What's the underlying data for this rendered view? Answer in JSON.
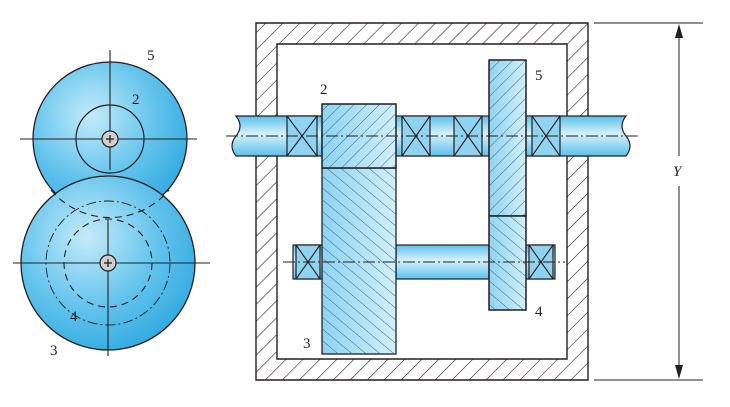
{
  "colors": {
    "gear_blue": "#3fb3e6",
    "gear_blue_light": "#bfe8f8",
    "shaft_blue": "#9fdaf2",
    "housing_gray": "#d9d9d9",
    "line": "#231f20"
  },
  "labels": {
    "end_view": {
      "gear_5": "5",
      "gear_2": "2",
      "gear_4": "4",
      "gear_3": "3"
    },
    "section_view": {
      "gear_2": "2",
      "gear_5": "5",
      "gear_4": "4",
      "gear_3": "3"
    },
    "dimension": "Y"
  }
}
